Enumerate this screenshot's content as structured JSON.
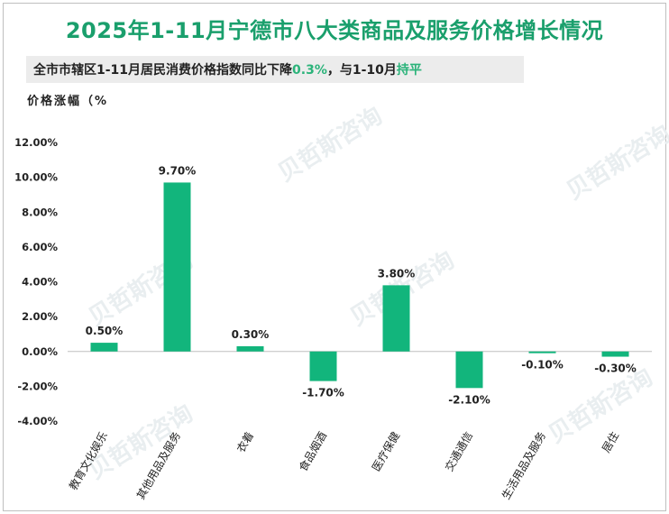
{
  "title": "2025年1-11月宁德市八大类商品及服务价格增长情况",
  "subtitle": {
    "prefix": "全市市辖区1-11月居民消费价格指数同比下降",
    "value": "0.3%",
    "middle": "，与1-10月",
    "status": "持平"
  },
  "watermark": "贝哲斯咨询",
  "colors": {
    "bar": "#12b57c",
    "title": "#1a9f6c",
    "highlight": "#2bb37a"
  },
  "chart_data": {
    "type": "bar",
    "ylabel": "价格涨幅（%",
    "ylim": [
      -4,
      12
    ],
    "yticks": [
      -4,
      -2,
      0,
      2,
      4,
      6,
      8,
      10,
      12
    ],
    "ytick_labels": [
      "-4.00%",
      "-2.00%",
      "0.00%",
      "2.00%",
      "4.00%",
      "6.00%",
      "8.00%",
      "10.00%",
      "12.00%"
    ],
    "categories": [
      "教育文化娱乐",
      "其他用品及服务",
      "衣着",
      "食品烟酒",
      "医疗保健",
      "交通通信",
      "生活用品及服务",
      "居住"
    ],
    "values": [
      0.5,
      9.7,
      0.3,
      -1.7,
      3.8,
      -2.1,
      -0.1,
      -0.3
    ],
    "data_labels": [
      "0.50%",
      "9.70%",
      "0.30%",
      "-1.70%",
      "3.80%",
      "-2.10%",
      "-0.10%",
      "-0.30%"
    ],
    "grid": false,
    "legend": "none"
  }
}
